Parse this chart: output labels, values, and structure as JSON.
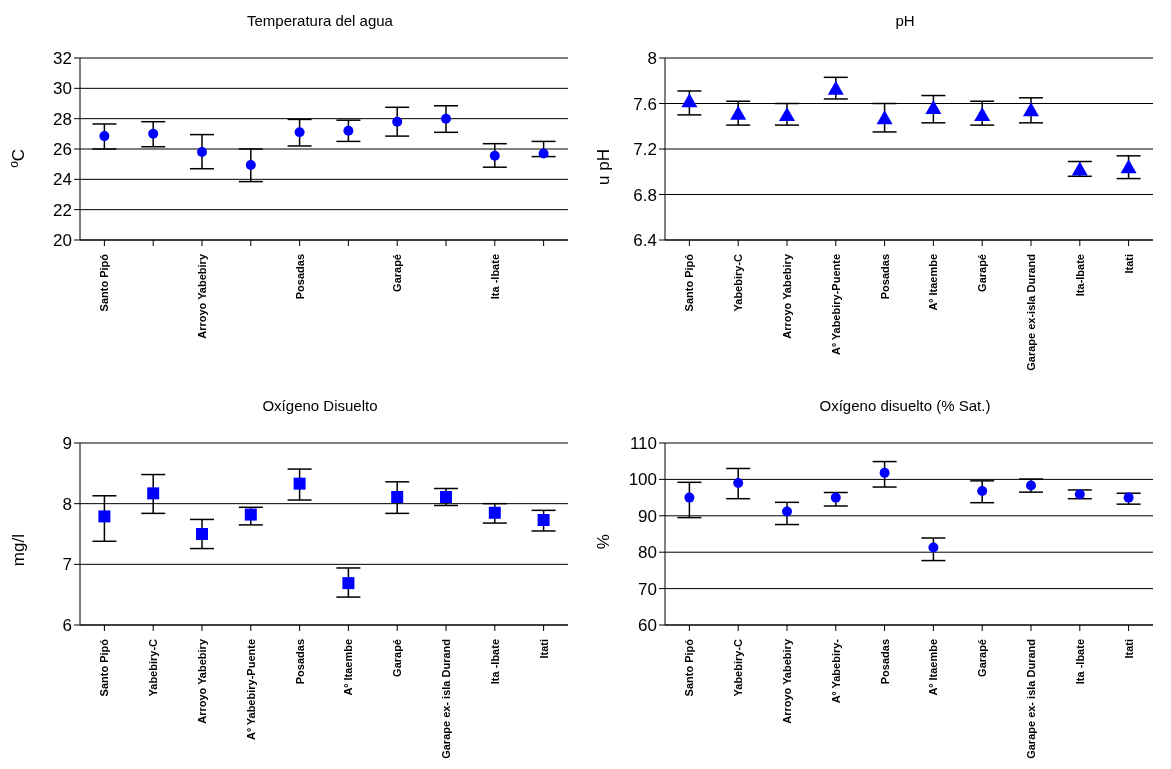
{
  "chart_data": [
    {
      "type": "scatter",
      "title": "Temperatura del agua",
      "ylabel": "ºC",
      "categories": [
        "Santo Pipó",
        null,
        "Arroyo Yabebiry",
        null,
        "Posadas",
        null,
        "Garapé",
        null,
        "Ita -Ibate",
        null
      ],
      "series": [
        {
          "color": "#0000ff",
          "values": [
            26.85,
            27.0,
            25.8,
            24.95,
            27.1,
            27.2,
            27.8,
            28.0,
            25.55,
            25.7
          ],
          "errors": [
            [
              26.0,
              27.65
            ],
            [
              26.15,
              27.8
            ],
            [
              24.7,
              26.95
            ],
            [
              23.85,
              26.0
            ],
            [
              26.2,
              27.95
            ],
            [
              26.5,
              27.9
            ],
            [
              26.85,
              28.75
            ],
            [
              27.1,
              28.85
            ],
            [
              24.8,
              26.35
            ],
            [
              25.5,
              26.5
            ]
          ]
        }
      ],
      "ylim": [
        20,
        32
      ],
      "yticks": [
        20,
        22,
        24,
        26,
        28,
        30,
        32
      ],
      "grid": "y",
      "marker": "circle",
      "legend": false
    },
    {
      "type": "scatter",
      "title": "pH",
      "ylabel": "u pH",
      "categories": [
        "Santo Pipó",
        "Yabebiry-C",
        "Arroyo Yabebiry",
        "Aº Yabebiry-Puente",
        "Posadas",
        "Aº Itaembe",
        "Garapé",
        "Garape ex-isla Durand",
        "Ita-Ibate",
        "Itati"
      ],
      "series": [
        {
          "color": "#0000ff",
          "values": [
            7.62,
            7.51,
            7.5,
            7.73,
            7.47,
            7.56,
            7.5,
            7.54,
            7.02,
            7.04
          ],
          "errors": [
            [
              7.5,
              7.71
            ],
            [
              7.41,
              7.62
            ],
            [
              7.41,
              7.6
            ],
            [
              7.64,
              7.83
            ],
            [
              7.35,
              7.6
            ],
            [
              7.43,
              7.67
            ],
            [
              7.41,
              7.62
            ],
            [
              7.43,
              7.65
            ],
            [
              6.96,
              7.09
            ],
            [
              6.94,
              7.14
            ]
          ]
        }
      ],
      "ylim": [
        6.4,
        8
      ],
      "yticks": [
        6.4,
        6.8,
        7.2,
        7.6,
        8
      ],
      "grid": "y",
      "marker": "triangle",
      "legend": false
    },
    {
      "type": "scatter",
      "title": "Oxígeno Disuelto",
      "ylabel": "mg/l",
      "categories": [
        "Santo Pipó",
        "Yabebiry-C",
        "Arroyo Yabebiry",
        "Aº Yabebiry-Puente",
        "Posadas",
        "Aº Itaembe",
        "Garapé",
        "Garape ex- isla Durand",
        "Ita -Ibate",
        "Itati"
      ],
      "series": [
        {
          "color": "#0000ff",
          "values": [
            7.79,
            8.17,
            7.5,
            7.82,
            8.33,
            6.69,
            8.11,
            8.11,
            7.85,
            7.73
          ],
          "errors": [
            [
              7.38,
              8.13
            ],
            [
              7.84,
              8.48
            ],
            [
              7.26,
              7.74
            ],
            [
              7.65,
              7.94
            ],
            [
              8.06,
              8.57
            ],
            [
              6.46,
              6.94
            ],
            [
              7.84,
              8.36
            ],
            [
              7.97,
              8.25
            ],
            [
              7.68,
              8.0
            ],
            [
              7.55,
              7.89
            ]
          ]
        }
      ],
      "ylim": [
        6,
        9
      ],
      "yticks": [
        6,
        7,
        8,
        9
      ],
      "grid": "y",
      "marker": "square",
      "legend": false
    },
    {
      "type": "scatter",
      "title": "Oxígeno disuelto (% Sat.)",
      "ylabel": "%",
      "categories": [
        "Santo Pipó",
        "Yabebiry-C",
        "Arroyo Yabebiry",
        "Aº Yabebiry-",
        "Posadas",
        "Aº Itaembe",
        "Garapé",
        "Garape ex- isla Durand",
        "Ita -Ibate",
        "Itati"
      ],
      "series": [
        {
          "color": "#0000ff",
          "values": [
            95.0,
            99.0,
            91.2,
            95.0,
            101.8,
            81.3,
            96.8,
            98.3,
            95.9,
            95.0
          ],
          "errors": [
            [
              89.5,
              99.2
            ],
            [
              94.7,
              103.0
            ],
            [
              87.6,
              93.7
            ],
            [
              92.7,
              96.4
            ],
            [
              97.9,
              104.9
            ],
            [
              77.7,
              83.9
            ],
            [
              93.6,
              99.6
            ],
            [
              96.5,
              100.1
            ],
            1.2,
            [
              93.2,
              96.2
            ]
          ]
        }
      ],
      "ylim": [
        60,
        110
      ],
      "yticks": [
        60,
        70,
        80,
        90,
        100,
        110
      ],
      "grid": "y",
      "marker": "circle",
      "legend": false
    }
  ]
}
